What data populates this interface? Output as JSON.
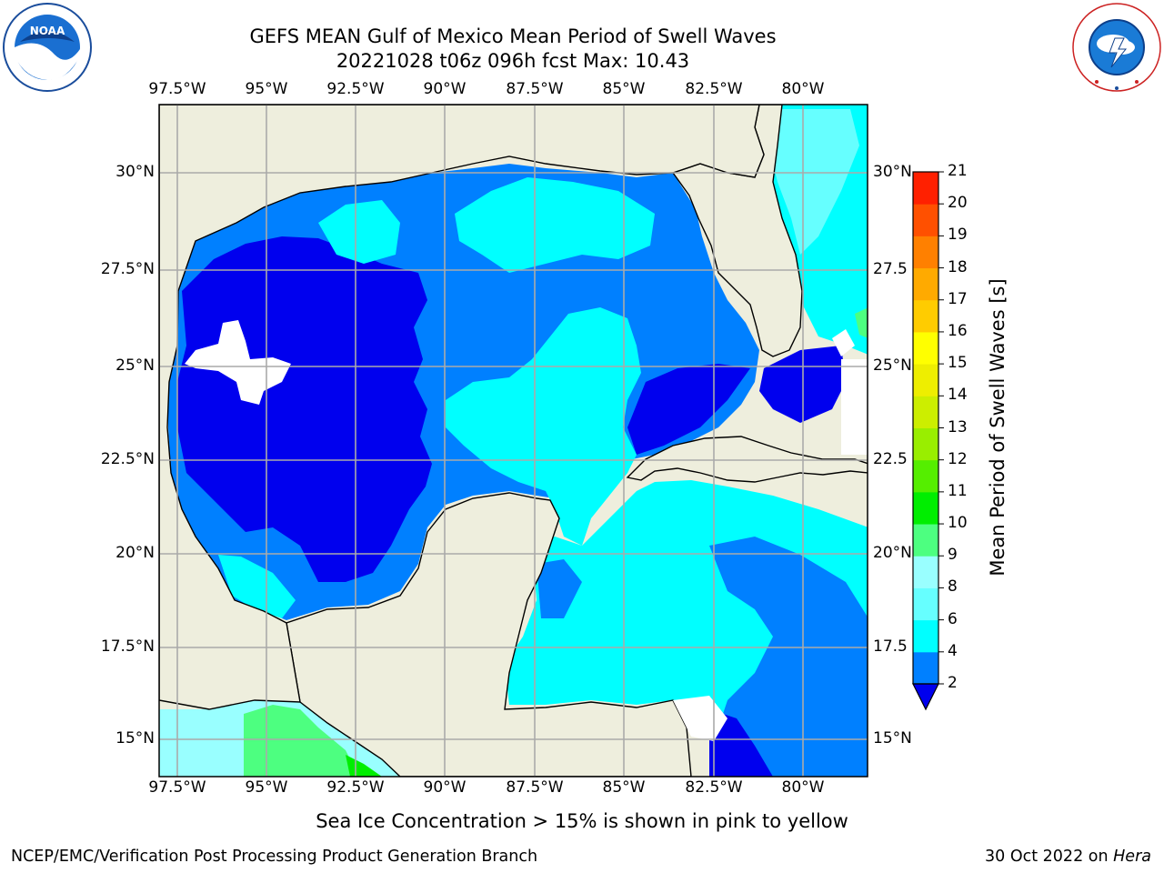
{
  "header": {
    "title_line1": "GEFS MEAN Gulf of Mexico Mean Period of Swell Waves",
    "title_line2": "20221028 t06z 096h fcst   Max: 10.43"
  },
  "logos": {
    "left": "noaa-logo",
    "right": "nws-logo",
    "left_text": "NOAA",
    "left_ring_text": "NATIONAL OCEANIC AND ATMOSPHERIC ADMINISTRATION · U.S. DEPARTMENT OF COMMERCE",
    "right_ring_text": "NATIONAL WEATHER SERVICE"
  },
  "map": {
    "projection": "lat-lon",
    "lon_range": [
      -98,
      -78
    ],
    "lat_range": [
      14,
      31.5
    ],
    "lon_ticks": [
      "97.5°W",
      "95°W",
      "92.5°W",
      "90°W",
      "87.5°W",
      "85°W",
      "82.5°W",
      "80°W"
    ],
    "lat_ticks_left": [
      "30°N",
      "27.5°N",
      "25°N",
      "22.5°N",
      "20°N",
      "17.5°N",
      "15°N"
    ],
    "lat_ticks_right": [
      "30°N",
      "27.5",
      "25°N",
      "22.5",
      "20°N",
      "17.5",
      "15°N"
    ],
    "grid": true,
    "land_color": "#eeeedd",
    "no_data_color": "#ffffff"
  },
  "colorbar": {
    "label": "Mean Period of Swell Waves [s]",
    "ticks": [
      "2",
      "4",
      "6",
      "8",
      "9",
      "10",
      "11",
      "12",
      "13",
      "14",
      "15",
      "16",
      "17",
      "18",
      "19",
      "20",
      "21"
    ],
    "colors": [
      "#0000ee",
      "#0080ff",
      "#00ffff",
      "#66ffff",
      "#99ffff",
      "#4dff80",
      "#00ee00",
      "#55ee00",
      "#99ee00",
      "#ccee00",
      "#eeee00",
      "#ffff00",
      "#ffcc00",
      "#ffaa00",
      "#ff8000",
      "#ff5000",
      "#ff2000",
      "#ff0000"
    ],
    "extend": "min"
  },
  "caption": "Sea Ice Concentration > 15% is shown in pink to yellow",
  "footer": {
    "left": "NCEP/EMC/Verification Post Processing Product Generation Branch",
    "right_date": "30 Oct 2022 on ",
    "right_machine": "Hera"
  }
}
